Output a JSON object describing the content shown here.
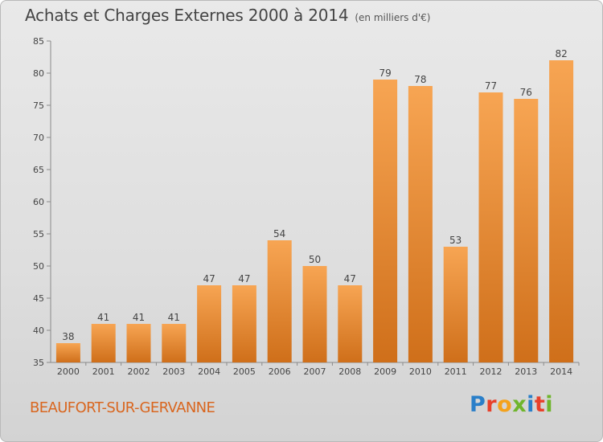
{
  "header": {
    "title": "Achats et Charges Externes 2000 à 2014",
    "unit": "(en milliers d'€)"
  },
  "footer": {
    "commune": "BEAUFORT-SUR-GERVANNE",
    "logo": "Proxiti"
  },
  "colors": {
    "bar_light": "#f7a553",
    "bar_dark": "#cf6f1a",
    "logo_letters": [
      "#2a7fc9",
      "#e8402a",
      "#f4a21c",
      "#6fb52c",
      "#2a7fc9",
      "#e8402a",
      "#6fb52c"
    ]
  },
  "chart_data": {
    "type": "bar",
    "categories": [
      "2000",
      "2001",
      "2002",
      "2003",
      "2004",
      "2005",
      "2006",
      "2007",
      "2008",
      "2009",
      "2010",
      "2011",
      "2012",
      "2013",
      "2014"
    ],
    "values": [
      38,
      41,
      41,
      41,
      47,
      47,
      54,
      50,
      47,
      79,
      78,
      53,
      77,
      76,
      82
    ],
    "ylim": [
      35,
      85
    ],
    "yticks": [
      35,
      40,
      45,
      50,
      55,
      60,
      65,
      70,
      75,
      80,
      85
    ],
    "grid": false,
    "legend": "none"
  }
}
